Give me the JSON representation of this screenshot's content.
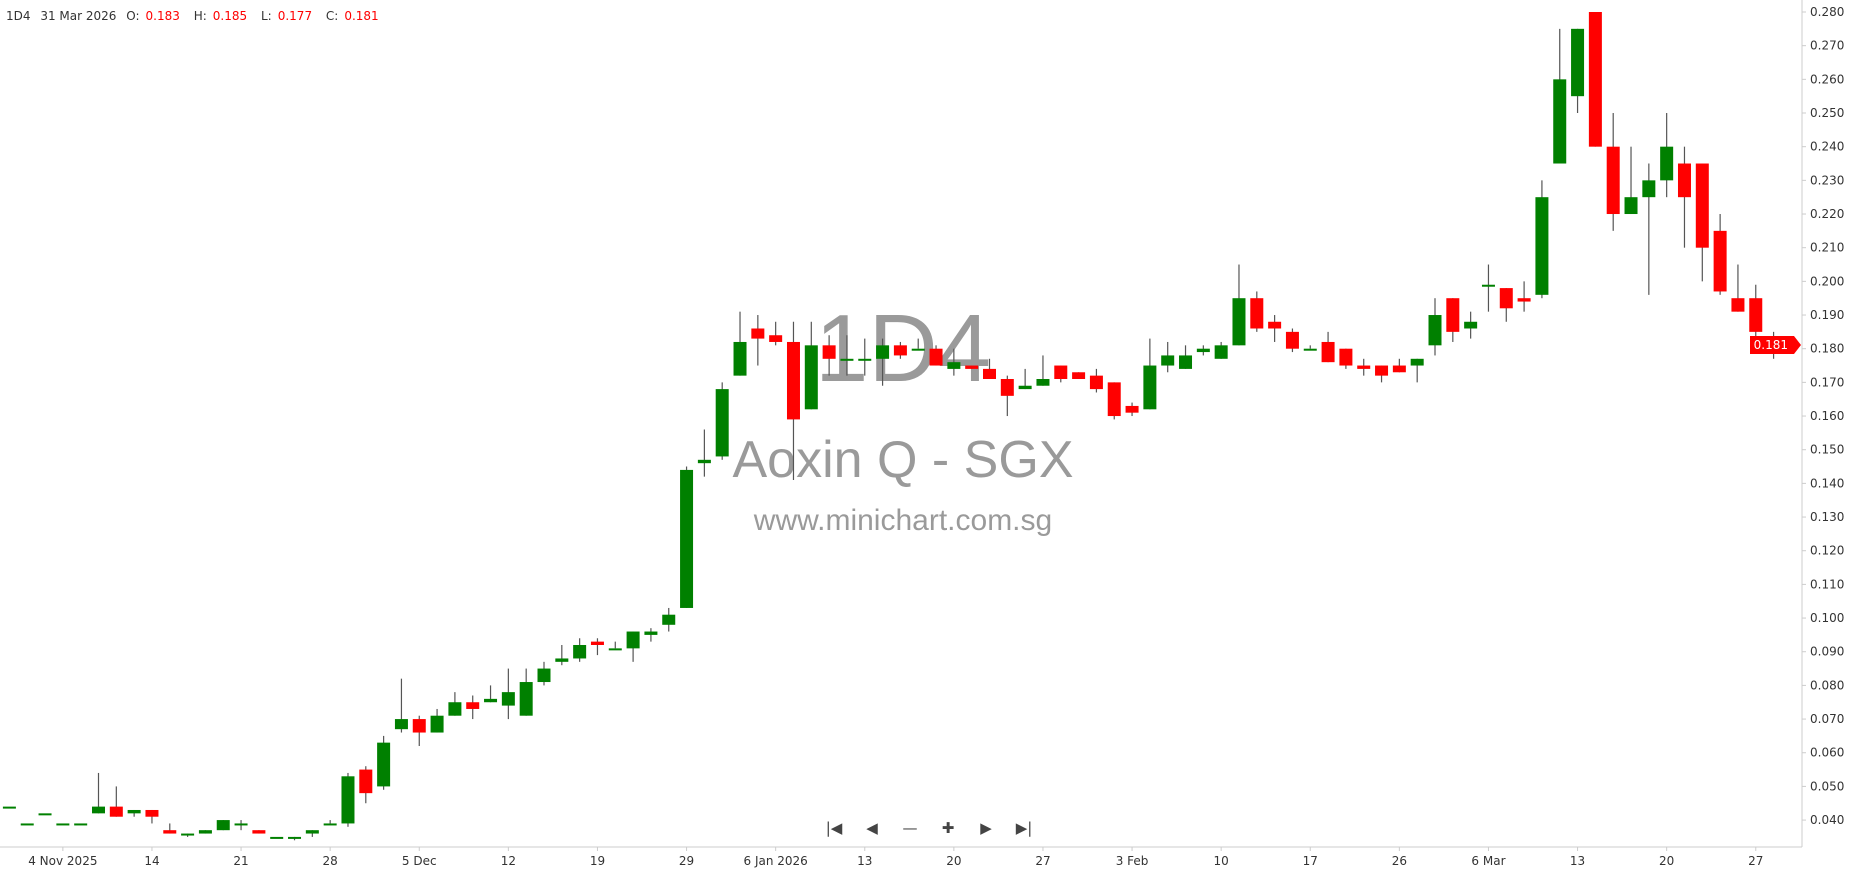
{
  "header": {
    "interval": "1D4",
    "date": "31 Mar 2026",
    "o_label": "O:",
    "o": "0.183",
    "h_label": "H:",
    "h": "0.185",
    "l_label": "L:",
    "l": "0.177",
    "c_label": "C:",
    "c": "0.181"
  },
  "watermark": {
    "code": "1D4",
    "name": "Aoxin Q - SGX",
    "site": "www.minichart.com.sg"
  },
  "nav": {
    "first": "first-icon",
    "prev": "prev-icon",
    "zoom_out": "minus-icon",
    "zoom_in": "plus-icon",
    "next": "next-icon",
    "last": "last-icon"
  },
  "last_price": "0.181",
  "colors": {
    "up": "#008000",
    "down": "#ff0000",
    "wick": "#555555",
    "axis": "#cccccc",
    "text": "#333333"
  },
  "chart_data": {
    "type": "candlestick",
    "ylim": [
      0.035,
      0.281
    ],
    "y_ticks": [
      "0.040",
      "0.050",
      "0.060",
      "0.070",
      "0.080",
      "0.090",
      "0.100",
      "0.110",
      "0.120",
      "0.130",
      "0.140",
      "0.150",
      "0.160",
      "0.170",
      "0.180",
      "0.190",
      "0.200",
      "0.210",
      "0.220",
      "0.230",
      "0.240",
      "0.250",
      "0.260",
      "0.270",
      "0.280"
    ],
    "x_ticks": [
      {
        "label": "4 Nov 2025",
        "bar": 4
      },
      {
        "label": "14",
        "bar": 9
      },
      {
        "label": "21",
        "bar": 14
      },
      {
        "label": "28",
        "bar": 19
      },
      {
        "label": "5 Dec",
        "bar": 24
      },
      {
        "label": "12",
        "bar": 29
      },
      {
        "label": "19",
        "bar": 34
      },
      {
        "label": "29",
        "bar": 39
      },
      {
        "label": "6 Jan 2026",
        "bar": 44
      },
      {
        "label": "13",
        "bar": 49
      },
      {
        "label": "20",
        "bar": 54
      },
      {
        "label": "27",
        "bar": 59
      },
      {
        "label": "3 Feb",
        "bar": 64
      },
      {
        "label": "10",
        "bar": 69
      },
      {
        "label": "17",
        "bar": 74
      },
      {
        "label": "26",
        "bar": 79
      },
      {
        "label": "6 Mar",
        "bar": 84
      },
      {
        "label": "13",
        "bar": 89
      },
      {
        "label": "20",
        "bar": 94
      },
      {
        "label": "27",
        "bar": 99
      }
    ],
    "ohlc_fields": [
      "open",
      "high",
      "low",
      "close"
    ],
    "candles": [
      [
        0.044,
        0.044,
        0.044,
        0.044
      ],
      [
        0.039,
        0.039,
        0.039,
        0.039
      ],
      [
        0.042,
        0.042,
        0.042,
        0.042
      ],
      [
        0.039,
        0.039,
        0.039,
        0.039
      ],
      [
        0.039,
        0.039,
        0.039,
        0.039
      ],
      [
        0.042,
        0.054,
        0.042,
        0.044
      ],
      [
        0.044,
        0.05,
        0.041,
        0.041
      ],
      [
        0.042,
        0.043,
        0.041,
        0.043
      ],
      [
        0.043,
        0.043,
        0.039,
        0.041
      ],
      [
        0.037,
        0.039,
        0.036,
        0.036
      ],
      [
        0.036,
        0.036,
        0.035,
        0.036
      ],
      [
        0.036,
        0.037,
        0.036,
        0.037
      ],
      [
        0.037,
        0.04,
        0.037,
        0.04
      ],
      [
        0.039,
        0.04,
        0.037,
        0.039
      ],
      [
        0.037,
        0.037,
        0.036,
        0.036
      ],
      [
        0.035,
        0.035,
        0.035,
        0.035
      ],
      [
        0.035,
        0.035,
        0.034,
        0.035
      ],
      [
        0.036,
        0.037,
        0.035,
        0.037
      ],
      [
        0.039,
        0.04,
        0.039,
        0.039
      ],
      [
        0.039,
        0.054,
        0.038,
        0.053
      ],
      [
        0.055,
        0.056,
        0.045,
        0.048
      ],
      [
        0.05,
        0.065,
        0.049,
        0.063
      ],
      [
        0.067,
        0.082,
        0.066,
        0.07
      ],
      [
        0.07,
        0.071,
        0.062,
        0.066
      ],
      [
        0.066,
        0.073,
        0.066,
        0.071
      ],
      [
        0.071,
        0.078,
        0.071,
        0.075
      ],
      [
        0.075,
        0.077,
        0.07,
        0.073
      ],
      [
        0.075,
        0.08,
        0.075,
        0.076
      ],
      [
        0.074,
        0.085,
        0.07,
        0.078
      ],
      [
        0.071,
        0.085,
        0.071,
        0.081
      ],
      [
        0.081,
        0.087,
        0.08,
        0.085
      ],
      [
        0.087,
        0.092,
        0.086,
        0.088
      ],
      [
        0.088,
        0.094,
        0.087,
        0.092
      ],
      [
        0.093,
        0.094,
        0.089,
        0.092
      ],
      [
        0.091,
        0.093,
        0.091,
        0.091
      ],
      [
        0.091,
        0.096,
        0.087,
        0.096
      ],
      [
        0.095,
        0.097,
        0.093,
        0.096
      ],
      [
        0.098,
        0.103,
        0.096,
        0.101
      ],
      [
        0.103,
        0.145,
        0.103,
        0.144
      ],
      [
        0.146,
        0.156,
        0.142,
        0.147
      ],
      [
        0.148,
        0.17,
        0.147,
        0.168
      ],
      [
        0.172,
        0.191,
        0.172,
        0.182
      ],
      [
        0.186,
        0.19,
        0.175,
        0.183
      ],
      [
        0.184,
        0.188,
        0.181,
        0.182
      ],
      [
        0.182,
        0.188,
        0.141,
        0.159
      ],
      [
        0.162,
        0.188,
        0.162,
        0.181
      ],
      [
        0.181,
        0.184,
        0.172,
        0.177
      ],
      [
        0.177,
        0.184,
        0.172,
        0.177
      ],
      [
        0.177,
        0.183,
        0.172,
        0.177
      ],
      [
        0.177,
        0.183,
        0.169,
        0.181
      ],
      [
        0.181,
        0.182,
        0.177,
        0.178
      ],
      [
        0.18,
        0.183,
        0.18,
        0.18
      ],
      [
        0.18,
        0.181,
        0.175,
        0.175
      ],
      [
        0.174,
        0.18,
        0.172,
        0.176
      ],
      [
        0.175,
        0.175,
        0.174,
        0.174
      ],
      [
        0.174,
        0.177,
        0.171,
        0.171
      ],
      [
        0.171,
        0.172,
        0.16,
        0.166
      ],
      [
        0.168,
        0.174,
        0.168,
        0.169
      ],
      [
        0.169,
        0.178,
        0.169,
        0.171
      ],
      [
        0.175,
        0.175,
        0.17,
        0.171
      ],
      [
        0.173,
        0.173,
        0.171,
        0.171
      ],
      [
        0.172,
        0.174,
        0.167,
        0.168
      ],
      [
        0.17,
        0.17,
        0.159,
        0.16
      ],
      [
        0.163,
        0.164,
        0.16,
        0.161
      ],
      [
        0.162,
        0.183,
        0.162,
        0.175
      ],
      [
        0.175,
        0.182,
        0.173,
        0.178
      ],
      [
        0.174,
        0.181,
        0.174,
        0.178
      ],
      [
        0.179,
        0.181,
        0.178,
        0.18
      ],
      [
        0.177,
        0.182,
        0.177,
        0.181
      ],
      [
        0.181,
        0.205,
        0.181,
        0.195
      ],
      [
        0.195,
        0.197,
        0.185,
        0.186
      ],
      [
        0.188,
        0.19,
        0.182,
        0.186
      ],
      [
        0.185,
        0.186,
        0.179,
        0.18
      ],
      [
        0.18,
        0.181,
        0.18,
        0.18
      ],
      [
        0.182,
        0.185,
        0.176,
        0.176
      ],
      [
        0.18,
        0.18,
        0.174,
        0.175
      ],
      [
        0.175,
        0.177,
        0.172,
        0.174
      ],
      [
        0.175,
        0.175,
        0.17,
        0.172
      ],
      [
        0.175,
        0.177,
        0.173,
        0.173
      ],
      [
        0.175,
        0.177,
        0.17,
        0.177
      ],
      [
        0.181,
        0.195,
        0.178,
        0.19
      ],
      [
        0.195,
        0.195,
        0.182,
        0.185
      ],
      [
        0.186,
        0.191,
        0.183,
        0.188
      ],
      [
        0.199,
        0.205,
        0.191,
        0.199
      ],
      [
        0.198,
        0.198,
        0.188,
        0.192
      ],
      [
        0.195,
        0.2,
        0.191,
        0.194
      ],
      [
        0.196,
        0.23,
        0.195,
        0.225
      ],
      [
        0.235,
        0.275,
        0.235,
        0.26
      ],
      [
        0.255,
        0.275,
        0.25,
        0.275
      ],
      [
        0.28,
        0.28,
        0.24,
        0.24
      ],
      [
        0.24,
        0.25,
        0.215,
        0.22
      ],
      [
        0.22,
        0.24,
        0.22,
        0.225
      ],
      [
        0.225,
        0.235,
        0.196,
        0.23
      ],
      [
        0.23,
        0.25,
        0.225,
        0.24
      ],
      [
        0.235,
        0.24,
        0.21,
        0.225
      ],
      [
        0.235,
        0.235,
        0.2,
        0.21
      ],
      [
        0.215,
        0.22,
        0.196,
        0.197
      ],
      [
        0.195,
        0.205,
        0.191,
        0.191
      ],
      [
        0.195,
        0.199,
        0.183,
        0.185
      ],
      [
        0.183,
        0.185,
        0.177,
        0.181
      ]
    ]
  }
}
